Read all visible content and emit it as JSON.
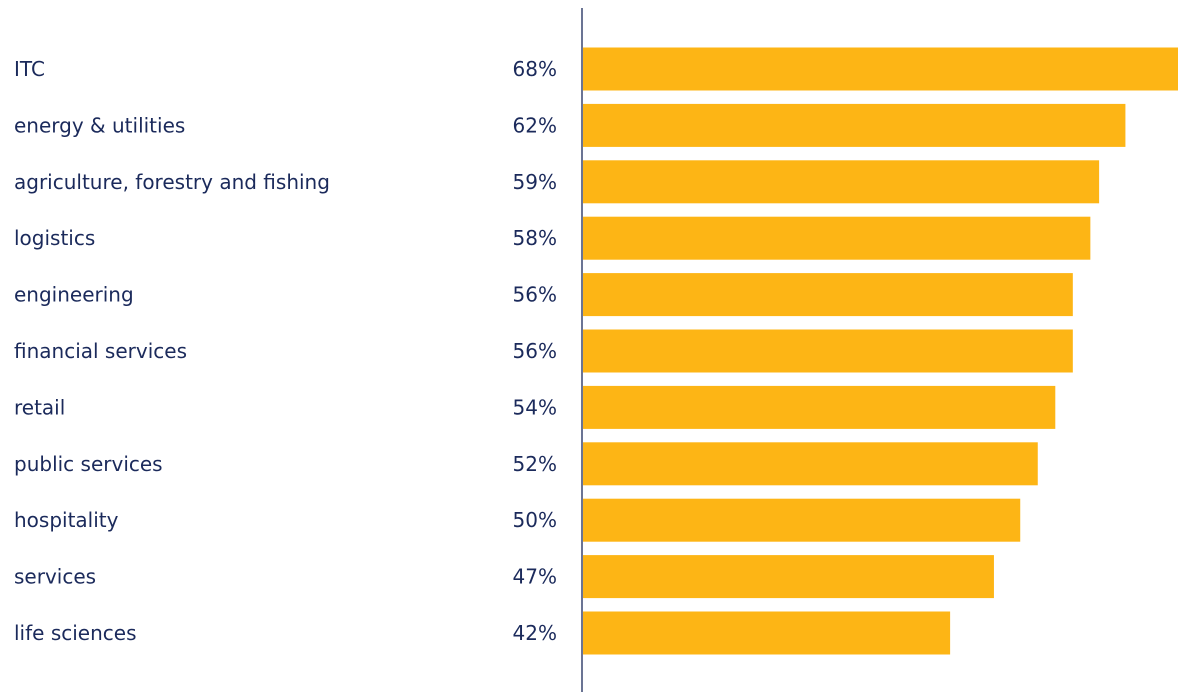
{
  "chart_data": {
    "type": "bar",
    "orientation": "horizontal",
    "categories": [
      "ITC",
      "energy & utilities",
      "agriculture, forestry and fishing",
      "logistics",
      "engineering",
      "financial services",
      "retail",
      "public services",
      "hospitality",
      "services",
      "life sciences"
    ],
    "values": [
      68,
      62,
      59,
      58,
      56,
      56,
      54,
      52,
      50,
      47,
      42
    ],
    "value_labels": [
      "68%",
      "62%",
      "59%",
      "58%",
      "56%",
      "56%",
      "54%",
      "52%",
      "50%",
      "47%",
      "42%"
    ],
    "xlim": [
      0,
      68
    ],
    "grid": false,
    "legend": "none",
    "colors": {
      "bar": "#FDB515",
      "text": "#1B2A5B",
      "axis": "#1B2A5B"
    }
  }
}
